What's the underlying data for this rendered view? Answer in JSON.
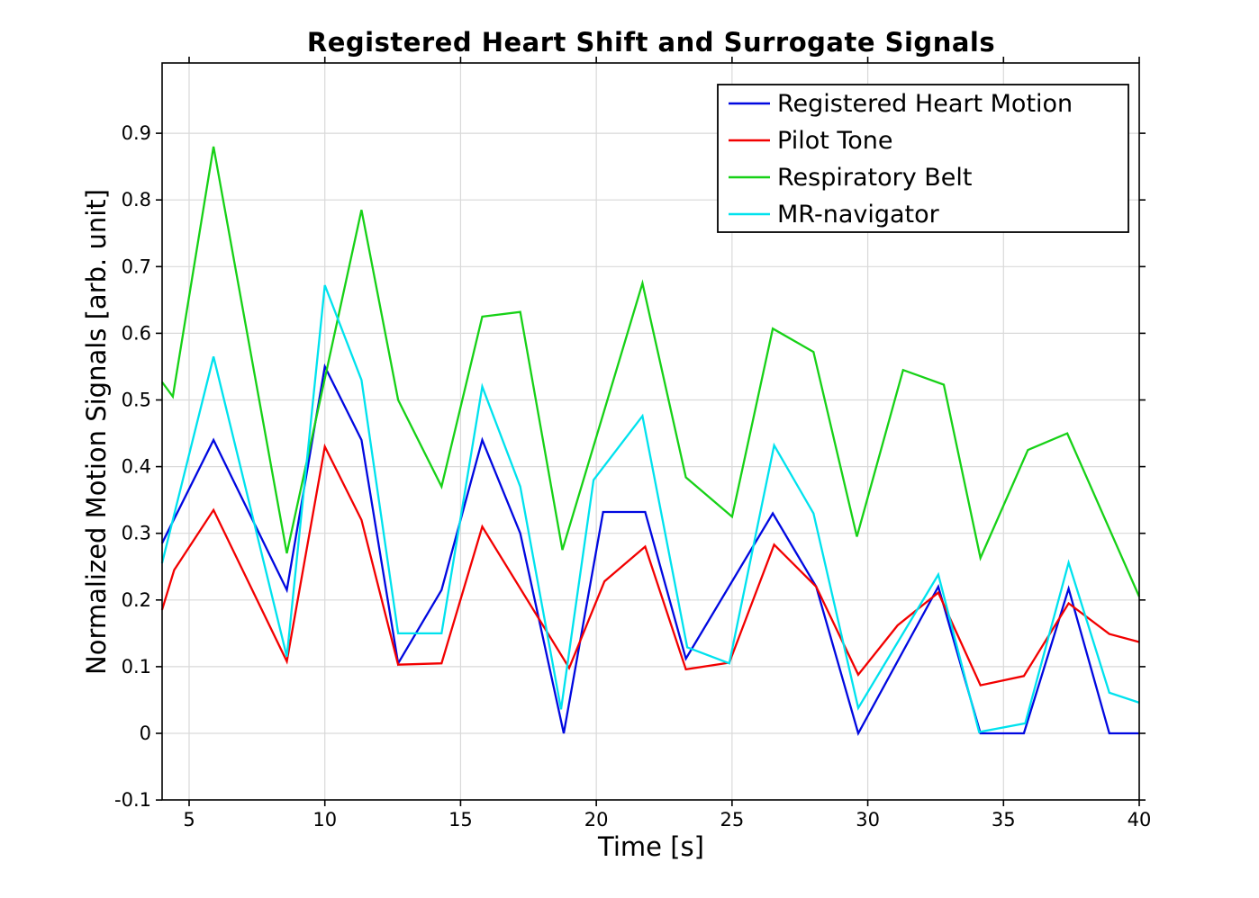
{
  "chart_data": {
    "type": "line",
    "title": "Registered Heart Shift and Surrogate Signals",
    "xlabel": "Time [s]",
    "ylabel": "Normalized Motion Signals [arb. unit]",
    "xlim": [
      4.0,
      40.05
    ],
    "ylim": [
      -0.1,
      1.005
    ],
    "xticks": [
      5,
      10,
      15,
      20,
      25,
      30,
      35,
      40
    ],
    "xtick_labels": [
      "5",
      "10",
      "15",
      "20",
      "25",
      "30",
      "35",
      "40"
    ],
    "yticks": [
      -0.1,
      0,
      0.1,
      0.2,
      0.3,
      0.4,
      0.5,
      0.6,
      0.7,
      0.8,
      0.9
    ],
    "ytick_labels": [
      "-0.1",
      "0",
      "0.1",
      "0.2",
      "0.3",
      "0.4",
      "0.5",
      "0.6",
      "0.7",
      "0.8",
      "0.9"
    ],
    "grid": true,
    "grid_color": "#d9d9d9",
    "axis_color": "#000000",
    "legend_position": "top-right",
    "series": [
      {
        "name": "Registered Heart Motion",
        "color": "#0008e0",
        "x": [
          4.0,
          5.9,
          8.6,
          10.0,
          11.35,
          12.7,
          14.3,
          15.8,
          17.2,
          18.8,
          20.25,
          21.8,
          23.3,
          26.5,
          28.1,
          29.65,
          32.6,
          34.15,
          35.75,
          37.4,
          38.9,
          40.0
        ],
        "y": [
          0.285,
          0.44,
          0.215,
          0.55,
          0.44,
          0.105,
          0.215,
          0.44,
          0.3,
          0.0,
          0.332,
          0.332,
          0.112,
          0.33,
          0.22,
          0.0,
          0.22,
          0.0,
          0.0,
          0.217,
          0.0,
          0.0
        ]
      },
      {
        "name": "Pilot Tone",
        "color": "#f20000",
        "x": [
          4.0,
          4.45,
          5.9,
          8.6,
          10.0,
          11.35,
          12.7,
          14.3,
          15.8,
          19.0,
          20.3,
          21.8,
          23.3,
          24.9,
          26.55,
          28.1,
          29.65,
          31.1,
          32.6,
          34.15,
          35.75,
          37.4,
          38.9,
          40.0
        ],
        "y": [
          0.185,
          0.245,
          0.335,
          0.108,
          0.43,
          0.32,
          0.103,
          0.105,
          0.31,
          0.098,
          0.228,
          0.28,
          0.096,
          0.106,
          0.283,
          0.22,
          0.088,
          0.162,
          0.211,
          0.072,
          0.086,
          0.195,
          0.149,
          0.137
        ]
      },
      {
        "name": "Respiratory Belt",
        "color": "#17d117",
        "x": [
          4.0,
          4.4,
          5.9,
          8.6,
          11.35,
          12.7,
          14.3,
          15.8,
          17.2,
          18.75,
          21.7,
          23.3,
          25.0,
          26.5,
          28.0,
          29.6,
          31.3,
          32.8,
          34.15,
          35.9,
          37.35,
          40.0
        ],
        "y": [
          0.527,
          0.505,
          0.88,
          0.27,
          0.785,
          0.5,
          0.37,
          0.625,
          0.632,
          0.275,
          0.675,
          0.384,
          0.325,
          0.607,
          0.572,
          0.295,
          0.545,
          0.523,
          0.263,
          0.425,
          0.45,
          0.205
        ]
      },
      {
        "name": "MR-navigator",
        "color": "#00e2ee",
        "x": [
          4.0,
          5.9,
          8.6,
          10.0,
          11.35,
          12.7,
          14.3,
          15.8,
          17.2,
          18.7,
          19.9,
          21.7,
          23.35,
          24.9,
          26.55,
          28.0,
          29.65,
          32.6,
          34.1,
          35.8,
          37.4,
          38.9,
          40.0
        ],
        "y": [
          0.255,
          0.565,
          0.115,
          0.672,
          0.53,
          0.15,
          0.15,
          0.52,
          0.37,
          0.036,
          0.38,
          0.476,
          0.129,
          0.105,
          0.432,
          0.33,
          0.038,
          0.238,
          0.002,
          0.015,
          0.256,
          0.061,
          0.046
        ]
      }
    ]
  }
}
